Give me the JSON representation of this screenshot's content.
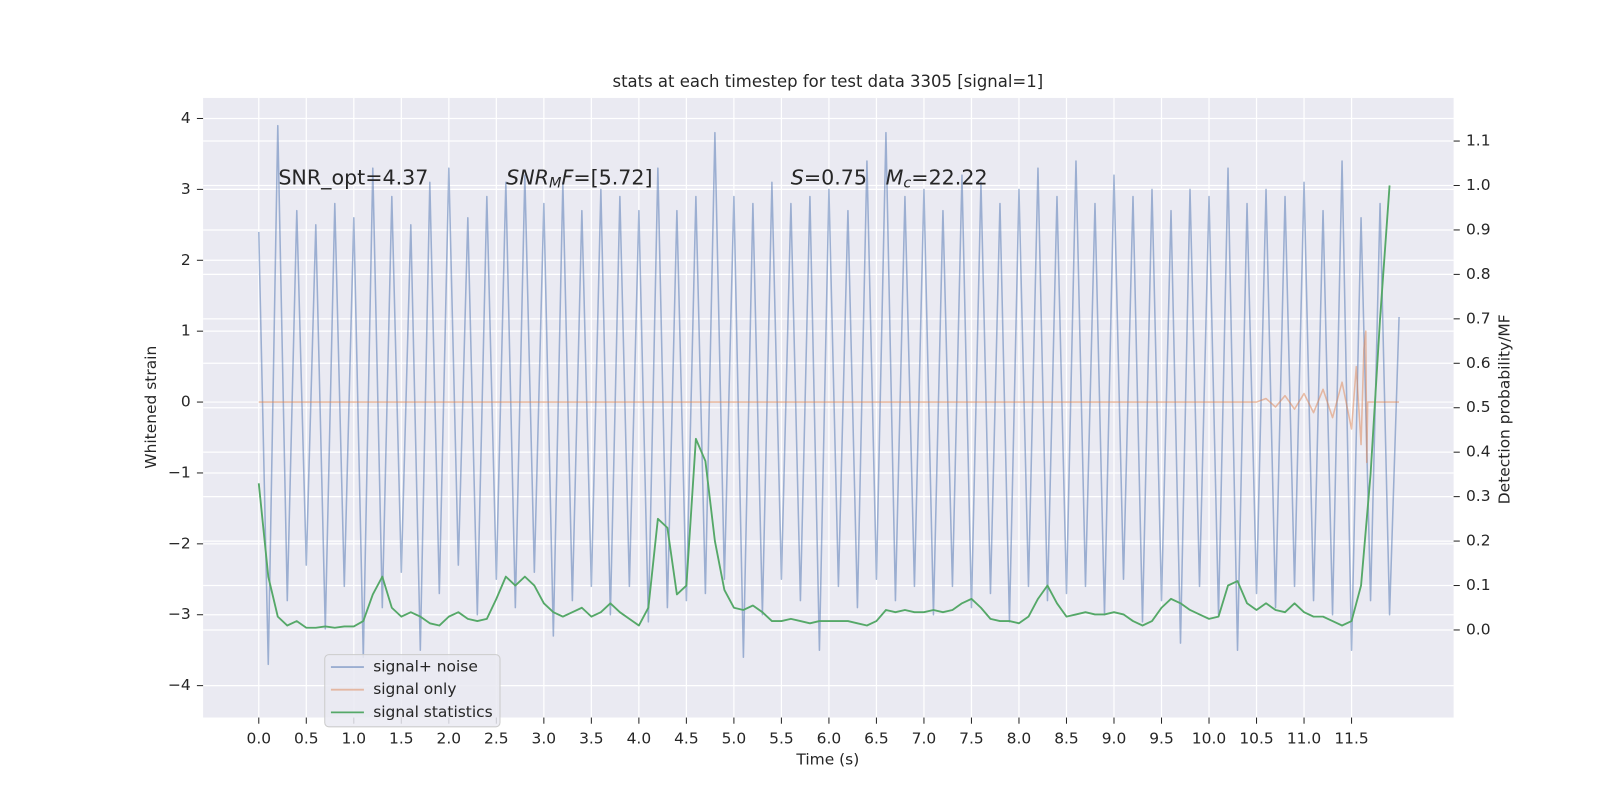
{
  "chart_data": {
    "type": "line",
    "title": "stats at each timestep for test data 3305 [signal=1]",
    "x_label": "Time (s)",
    "y_label": "Whitened strain",
    "y2_label": "Detection probability/MF",
    "annotations": [
      [
        {
          "t": "SNR_opt=4.37",
          "style": "normal"
        }
      ],
      [
        {
          "t": "SNR",
          "style": "italic"
        },
        {
          "t": "M",
          "style": "sub"
        },
        {
          "t": "F",
          "style": "italic"
        },
        {
          "t": "=[5.72]",
          "style": "normal"
        }
      ],
      [
        {
          "t": "S",
          "style": "italic"
        },
        {
          "t": "=0.75",
          "style": "normal"
        }
      ],
      [
        {
          "t": "M",
          "style": "italic"
        },
        {
          "t": "c",
          "style": "sub"
        },
        {
          "t": "=22.22",
          "style": "normal"
        }
      ]
    ],
    "xlim": [
      -0.586,
      12.574
    ],
    "ylim": [
      -4.45,
      4.29
    ],
    "y2lim": [
      -0.197,
      1.197
    ],
    "xticks": [
      {
        "value": 0,
        "label": "0.0"
      },
      0.5,
      {
        "value": 1,
        "label": "1.0"
      },
      1.5,
      {
        "value": 2,
        "label": "2.0"
      },
      2.5,
      {
        "value": 3,
        "label": "3.0"
      },
      3.5,
      {
        "value": 4,
        "label": "4.0"
      },
      4.5,
      {
        "value": 5,
        "label": "5.0"
      },
      5.5,
      {
        "value": 6,
        "label": "6.0"
      },
      6.5,
      {
        "value": 7,
        "label": "7.0"
      },
      7.5,
      {
        "value": 8,
        "label": "8.0"
      },
      8.5,
      {
        "value": 9,
        "label": "9.0"
      },
      9.5,
      {
        "value": 10,
        "label": "10.0"
      },
      10.5,
      {
        "value": 11,
        "label": "11.0"
      },
      11.5
    ],
    "yticks": [
      {
        "value": -4,
        "label": "−4"
      },
      {
        "value": -3,
        "label": "−3"
      },
      {
        "value": -2,
        "label": "−2"
      },
      {
        "value": -1,
        "label": "−1"
      },
      0,
      1,
      2,
      3,
      4
    ],
    "y2ticks": [
      {
        "value": 0,
        "label": "0.0"
      },
      0.1,
      0.2,
      0.3,
      0.4,
      0.5,
      0.6,
      0.7,
      0.8,
      0.9,
      {
        "value": 1,
        "label": "1.0"
      },
      1.1
    ],
    "grid": true,
    "legend": "lower left",
    "series": [
      {
        "name": "signal+ noise",
        "color": "#4c72b0",
        "x": [
          0,
          0.1,
          0.2,
          0.3,
          0.4,
          0.5,
          0.6,
          0.7,
          0.8,
          0.9,
          1,
          1.1,
          1.2,
          1.3,
          1.4,
          1.5,
          1.6,
          1.7,
          1.8,
          1.9,
          2,
          2.1,
          2.2,
          2.3,
          2.4,
          2.5,
          2.6,
          2.7,
          2.8,
          2.9,
          3,
          3.1,
          3.2,
          3.3,
          3.4,
          3.5,
          3.6,
          3.7,
          3.8,
          3.9,
          4,
          4.1,
          4.2,
          4.3,
          4.4,
          4.5,
          4.6,
          4.7,
          4.8,
          4.9,
          5,
          5.1,
          5.2,
          5.3,
          5.4,
          5.5,
          5.6,
          5.7,
          5.8,
          5.9,
          6,
          6.1,
          6.2,
          6.3,
          6.4,
          6.5,
          6.6,
          6.7,
          6.8,
          6.9,
          7,
          7.1,
          7.2,
          7.3,
          7.4,
          7.5,
          7.6,
          7.7,
          7.8,
          7.9,
          8,
          8.1,
          8.2,
          8.3,
          8.4,
          8.5,
          8.6,
          8.7,
          8.8,
          8.9,
          9,
          9.1,
          9.2,
          9.3,
          9.4,
          9.5,
          9.6,
          9.7,
          9.8,
          9.9,
          10,
          10.1,
          10.2,
          10.3,
          10.4,
          10.5,
          10.6,
          10.7,
          10.8,
          10.9,
          11,
          11.1,
          11.2,
          11.3,
          11.4,
          11.5,
          11.6,
          11.7,
          11.8,
          11.9,
          12
        ],
        "values": [
          2.4,
          -3.7,
          3.9,
          -2.8,
          2.7,
          -2.3,
          2.5,
          -3.2,
          2.8,
          -2.6,
          2.6,
          -3.6,
          3.3,
          -2.9,
          2.9,
          -2.4,
          2.5,
          -3.5,
          3.1,
          -2.7,
          3.3,
          -2.3,
          2.6,
          -3.0,
          2.9,
          -2.5,
          3.1,
          -2.9,
          3.2,
          -2.4,
          2.8,
          -3.3,
          3.1,
          -2.8,
          2.7,
          -2.6,
          3.0,
          -3.0,
          2.9,
          -2.6,
          2.7,
          -3.1,
          3.3,
          -2.9,
          2.7,
          -2.8,
          2.9,
          -2.7,
          3.8,
          -2.5,
          2.9,
          -3.6,
          2.8,
          -3.0,
          3.1,
          -2.5,
          2.8,
          -2.8,
          2.9,
          -3.5,
          3.0,
          -2.6,
          2.7,
          -2.9,
          3.4,
          -2.5,
          3.8,
          -2.8,
          2.9,
          -2.6,
          3.0,
          -3.0,
          2.7,
          -2.6,
          3.2,
          -2.9,
          3.1,
          -2.7,
          2.8,
          -3.1,
          3.0,
          -2.6,
          3.3,
          -2.8,
          2.9,
          -2.7,
          3.4,
          -2.6,
          2.8,
          -3.0,
          3.2,
          -2.5,
          2.9,
          -3.1,
          3.0,
          -2.8,
          2.7,
          -3.4,
          3.0,
          -2.6,
          2.9,
          -3.0,
          3.3,
          -3.5,
          2.8,
          -2.7,
          3.0,
          -2.9,
          2.9,
          -2.6,
          3.1,
          -2.8,
          2.7,
          -3.0,
          3.4,
          -3.5,
          2.6,
          -2.8,
          2.8,
          -3.0,
          1.2
        ]
      },
      {
        "name": "signal only",
        "color": "#dd8452",
        "x": [
          0,
          10.5,
          10.6,
          10.7,
          10.8,
          10.9,
          11,
          11.1,
          11.2,
          11.3,
          11.4,
          11.5,
          11.55,
          11.6,
          11.63,
          11.65,
          11.66,
          11.67,
          12
        ],
        "values": [
          0,
          0,
          0.05,
          -0.07,
          0.09,
          -0.1,
          0.12,
          -0.15,
          0.18,
          -0.22,
          0.28,
          -0.38,
          0.5,
          -0.6,
          0.75,
          1.0,
          -0.85,
          0,
          0
        ]
      },
      {
        "name": "signal statistics",
        "color": "#55a868",
        "axis": "y2",
        "x": [
          0,
          0.1,
          0.2,
          0.3,
          0.4,
          0.5,
          0.6,
          0.7,
          0.8,
          0.9,
          1,
          1.1,
          1.2,
          1.3,
          1.4,
          1.5,
          1.6,
          1.7,
          1.8,
          1.9,
          2,
          2.1,
          2.2,
          2.3,
          2.4,
          2.5,
          2.6,
          2.7,
          2.8,
          2.9,
          3,
          3.1,
          3.2,
          3.3,
          3.4,
          3.5,
          3.6,
          3.7,
          3.8,
          3.9,
          4,
          4.1,
          4.2,
          4.3,
          4.4,
          4.5,
          4.6,
          4.7,
          4.8,
          4.9,
          5,
          5.1,
          5.2,
          5.3,
          5.4,
          5.5,
          5.6,
          5.7,
          5.8,
          5.9,
          6,
          6.1,
          6.2,
          6.3,
          6.4,
          6.5,
          6.6,
          6.7,
          6.8,
          6.9,
          7,
          7.1,
          7.2,
          7.3,
          7.4,
          7.5,
          7.6,
          7.7,
          7.8,
          7.9,
          8,
          8.1,
          8.2,
          8.3,
          8.4,
          8.5,
          8.6,
          8.7,
          8.8,
          8.9,
          9,
          9.1,
          9.2,
          9.3,
          9.4,
          9.5,
          9.6,
          9.7,
          9.8,
          9.9,
          10,
          10.1,
          10.2,
          10.3,
          10.4,
          10.5,
          10.6,
          10.7,
          10.8,
          10.9,
          11,
          11.1,
          11.2,
          11.3,
          11.4,
          11.5,
          11.6,
          11.7,
          11.8,
          11.9
        ],
        "values": [
          0.33,
          0.12,
          0.03,
          0.01,
          0.02,
          0.005,
          0.005,
          0.008,
          0.005,
          0.008,
          0.008,
          0.02,
          0.08,
          0.12,
          0.05,
          0.03,
          0.04,
          0.03,
          0.015,
          0.01,
          0.03,
          0.04,
          0.025,
          0.02,
          0.025,
          0.07,
          0.12,
          0.1,
          0.12,
          0.1,
          0.06,
          0.04,
          0.03,
          0.04,
          0.05,
          0.03,
          0.04,
          0.06,
          0.04,
          0.025,
          0.01,
          0.05,
          0.25,
          0.23,
          0.08,
          0.1,
          0.43,
          0.38,
          0.2,
          0.09,
          0.05,
          0.045,
          0.055,
          0.04,
          0.02,
          0.02,
          0.025,
          0.02,
          0.015,
          0.02,
          0.02,
          0.02,
          0.02,
          0.015,
          0.01,
          0.02,
          0.045,
          0.04,
          0.045,
          0.04,
          0.04,
          0.045,
          0.04,
          0.045,
          0.06,
          0.07,
          0.05,
          0.025,
          0.02,
          0.02,
          0.015,
          0.03,
          0.07,
          0.1,
          0.06,
          0.03,
          0.035,
          0.04,
          0.035,
          0.035,
          0.04,
          0.035,
          0.02,
          0.01,
          0.02,
          0.05,
          0.07,
          0.06,
          0.045,
          0.035,
          0.025,
          0.03,
          0.1,
          0.11,
          0.06,
          0.045,
          0.06,
          0.045,
          0.04,
          0.06,
          0.04,
          0.03,
          0.03,
          0.02,
          0.01,
          0.02,
          0.1,
          0.35,
          0.7,
          1.0
        ]
      }
    ]
  }
}
